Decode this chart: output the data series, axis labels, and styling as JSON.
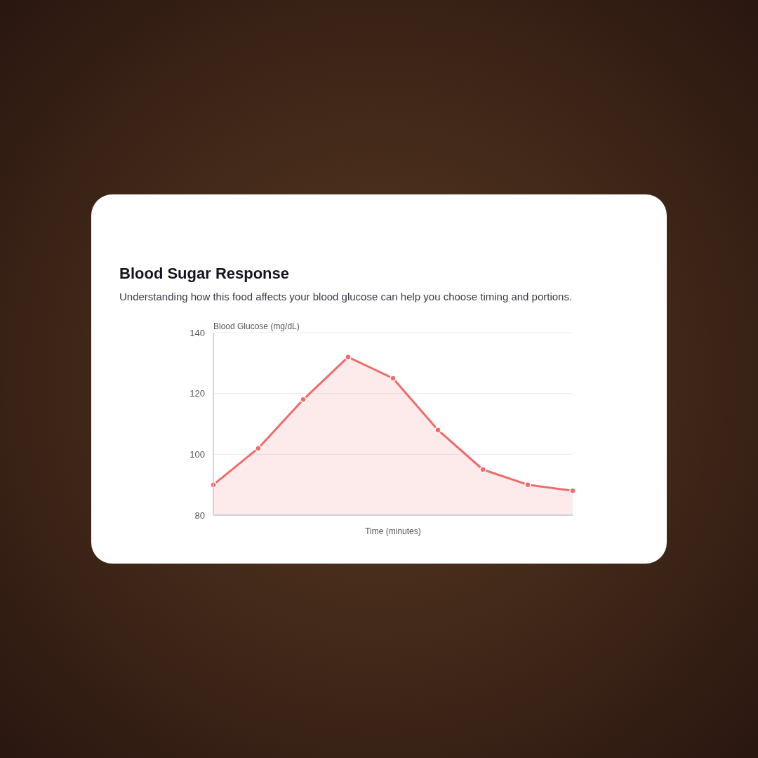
{
  "chart_data": {
    "type": "area",
    "title": "Blood Sugar Response",
    "subtitle": "Understanding how this food affects your blood glucose can help you choose timing and portions.",
    "xlabel": "Time (minutes)",
    "ylabel": "Blood Glucose (mg/dL)",
    "categories": [
      null,
      null,
      null,
      null,
      null,
      null,
      null,
      null,
      null
    ],
    "values": [
      90,
      102,
      118,
      132,
      125,
      108,
      95,
      90,
      88
    ],
    "color": "#f06b6b",
    "ylim": [
      80,
      140
    ],
    "yticks": [
      80,
      100,
      120,
      140
    ],
    "grid": "y",
    "tick_labels": "y",
    "marker": "circle"
  }
}
